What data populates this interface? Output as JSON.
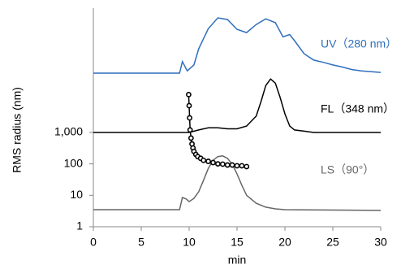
{
  "chart_data": {
    "type": "line",
    "log_y": true,
    "y_label": "RMS radius  (nm)",
    "x_label": "min",
    "xlim": [
      0,
      30
    ],
    "xticks": [
      0,
      5,
      10,
      15,
      20,
      25,
      30
    ],
    "ylim": [
      1,
      9000000
    ],
    "yticks": [
      1,
      10,
      100,
      {
        "value": 1000,
        "label": "1,000"
      }
    ],
    "series": [
      {
        "name": "UV（280 nm）",
        "color": "#2f6fbd",
        "x": [
          0,
          9,
          9.3,
          9.8,
          10.5,
          11,
          12,
          13,
          14,
          15,
          16,
          17,
          18,
          19,
          19.8,
          20.5,
          21,
          22,
          23,
          24,
          25,
          26,
          27,
          28,
          30
        ],
        "values": [
          77000,
          77000,
          180000,
          91000,
          140000,
          460000,
          2000000,
          4400000,
          3900000,
          1900000,
          1500000,
          2700000,
          4100000,
          3100000,
          1100000,
          1300000,
          830000,
          320000,
          200000,
          170000,
          140000,
          120000,
          100000,
          91000,
          81000
        ]
      },
      {
        "name": "FL（348 nm）",
        "color": "#000000",
        "x": [
          0,
          10,
          11,
          12,
          13,
          14,
          15,
          16,
          17,
          17.5,
          18,
          18.5,
          19,
          19.5,
          20,
          20.5,
          21,
          22,
          23,
          30
        ],
        "values": [
          1000,
          1000,
          1200,
          1400,
          1400,
          1300,
          1300,
          1600,
          3300,
          9500,
          31000,
          50000,
          37000,
          13000,
          3900,
          1600,
          1200,
          1100,
          1000,
          1000
        ]
      },
      {
        "name": "LS（90°）",
        "color": "#666666",
        "x": [
          0,
          9,
          9.3,
          9.7,
          10,
          10.5,
          11,
          11.5,
          12,
          12.5,
          13,
          13.5,
          14,
          14.5,
          15,
          15.5,
          16,
          17,
          18,
          19,
          20,
          30
        ],
        "values": [
          3.5,
          3.5,
          8.5,
          7.6,
          6.3,
          8.0,
          13,
          30,
          72,
          130,
          170,
          180,
          150,
          98,
          48,
          21,
          10,
          5.6,
          4.2,
          3.7,
          3.5,
          3.3
        ]
      },
      {
        "color": "#000000",
        "marker": true,
        "x": [
          9.95,
          10.0,
          10.05,
          10.1,
          10.2,
          10.3,
          10.4,
          10.5,
          10.7,
          10.9,
          11.2,
          11.5,
          12,
          12.5,
          13,
          13.5,
          14,
          14.5,
          15,
          15.5,
          16
        ],
        "values": [
          16000,
          7100,
          2900,
          1200,
          660,
          430,
          320,
          250,
          200,
          170,
          150,
          130,
          120,
          110,
          100,
          98,
          92,
          92,
          87,
          87,
          82
        ]
      }
    ]
  }
}
